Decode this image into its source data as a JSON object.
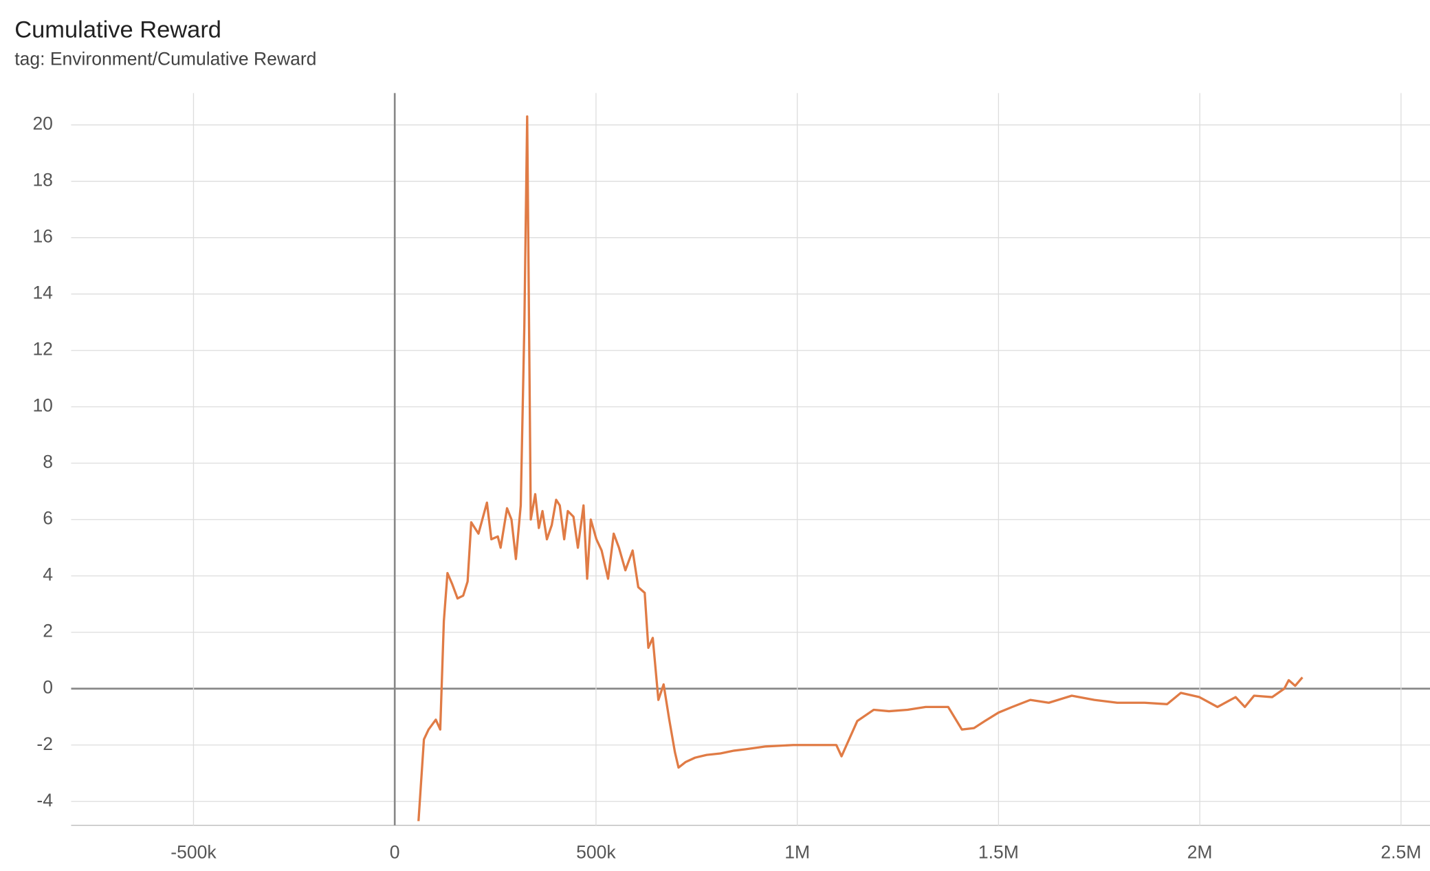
{
  "chart_data": {
    "type": "line",
    "title": "Cumulative Reward",
    "subtitle": "tag: Environment/Cumulative Reward",
    "color": "#e07b45",
    "x": [
      59000,
      72500,
      84000,
      102000,
      113000,
      122000,
      131000,
      143000,
      156000,
      170000,
      181000,
      190000,
      208000,
      229000,
      240000,
      256000,
      263000,
      279000,
      290000,
      301000,
      313000,
      322000,
      329000,
      338000,
      349000,
      358000,
      367000,
      378000,
      390000,
      401000,
      410000,
      421000,
      430000,
      444000,
      455000,
      469000,
      478000,
      487000,
      501000,
      514000,
      530000,
      544000,
      557000,
      573000,
      591000,
      605000,
      621000,
      630000,
      641000,
      655000,
      668000,
      682000,
      696000,
      705000,
      723000,
      746000,
      775000,
      809000,
      843000,
      872000,
      922000,
      990000,
      1097000,
      1110000,
      1149000,
      1190000,
      1228000,
      1274000,
      1319000,
      1375000,
      1409000,
      1439000,
      1466000,
      1500000,
      1534000,
      1579000,
      1625000,
      1682000,
      1738000,
      1795000,
      1863000,
      1919000,
      1953000,
      1999000,
      2044000,
      2089000,
      2112000,
      2135000,
      2180000,
      2210000,
      2221000,
      2237000,
      2255000
    ],
    "values": [
      -4.7,
      -1.8,
      -1.45,
      -1.1,
      -1.45,
      2.4,
      4.1,
      3.7,
      3.2,
      3.3,
      3.8,
      5.9,
      5.5,
      6.6,
      5.3,
      5.4,
      5.0,
      6.4,
      6.0,
      4.6,
      6.5,
      12.9,
      20.3,
      6.0,
      6.9,
      5.7,
      6.3,
      5.3,
      5.8,
      6.7,
      6.5,
      5.3,
      6.3,
      6.1,
      5.0,
      6.5,
      3.9,
      6.0,
      5.3,
      4.9,
      3.9,
      5.5,
      5.0,
      4.2,
      4.9,
      3.6,
      3.4,
      1.45,
      1.8,
      -0.4,
      0.15,
      -1.1,
      -2.25,
      -2.8,
      -2.6,
      -2.45,
      -2.35,
      -2.3,
      -2.2,
      -2.15,
      -2.05,
      -2.0,
      -2.0,
      -2.4,
      -1.15,
      -0.75,
      -0.8,
      -0.75,
      -0.65,
      -0.65,
      -1.45,
      -1.4,
      -1.15,
      -0.85,
      -0.65,
      -0.4,
      -0.5,
      -0.25,
      -0.4,
      -0.5,
      -0.5,
      -0.55,
      -0.15,
      -0.3,
      -0.65,
      -0.3,
      -0.65,
      -0.25,
      -0.3,
      0.0,
      0.3,
      0.1,
      0.4
    ],
    "xlim": [
      -804000,
      2572000
    ],
    "ylim": [
      -4.85,
      21.13
    ],
    "xticks": [
      {
        "value": -500000,
        "label": "-500k"
      },
      0,
      {
        "value": 500000,
        "label": "500k"
      },
      {
        "value": 1000000,
        "label": "1M"
      },
      {
        "value": 1500000,
        "label": "1.5M"
      },
      {
        "value": 2000000,
        "label": "2M"
      },
      {
        "value": 2500000,
        "label": "2.5M"
      }
    ],
    "yticks": [
      -4,
      -2,
      0,
      2,
      4,
      6,
      8,
      10,
      12,
      14,
      16,
      18,
      20
    ],
    "grid": true
  }
}
